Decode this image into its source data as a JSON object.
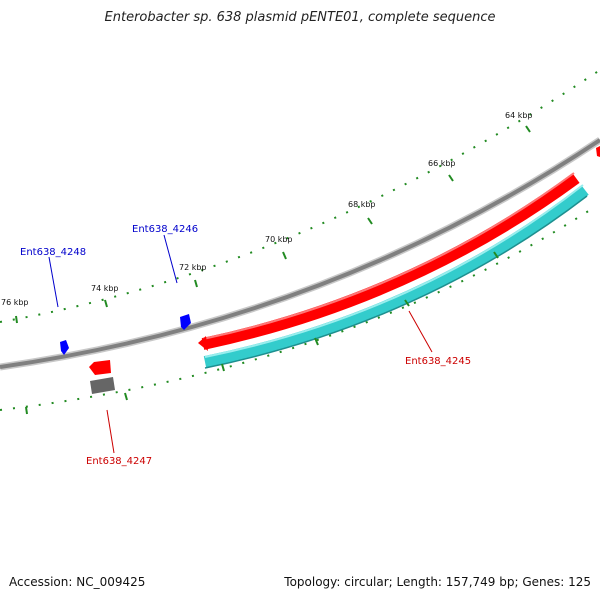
{
  "title": "Enterobacter sp. 638 plasmid pENTE01, complete sequence",
  "footer": {
    "accession": "Accession: NC_009425",
    "summary": "Topology: circular; Length: 157,749 bp; Genes: 125"
  },
  "ruler_labels": [
    "64 kbp",
    "66 kbp",
    "68 kbp",
    "70 kbp",
    "72 kbp",
    "74 kbp",
    "76 kbp"
  ],
  "genes": [
    {
      "name": "Ent638_4248",
      "color": "#0000cc"
    },
    {
      "name": "Ent638_4246",
      "color": "#0000cc"
    },
    {
      "name": "Ent638_4245",
      "color": "#cc0000"
    },
    {
      "name": "Ent638_4247",
      "color": "#cc0000"
    }
  ],
  "colors": {
    "backbone": "#888888",
    "forward_feature": "#ff0000",
    "cds_feature": "#33cccc",
    "reverse_feature": "#0000ff",
    "other_feature": "#666666",
    "tick": "#228b22"
  }
}
